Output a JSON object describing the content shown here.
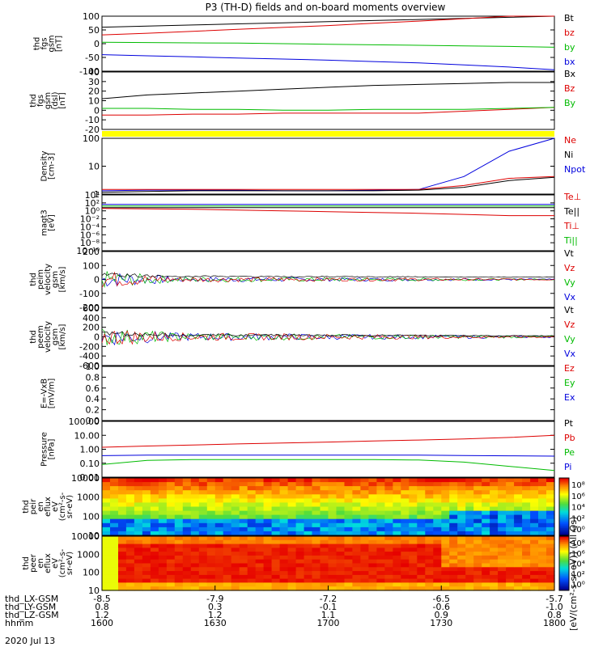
{
  "chart_data": {
    "type": "line",
    "title": "P3 (TH-D) fields and on-board moments overview",
    "date": "2020 Jul 13",
    "xaxis": {
      "hhmm_ticks": [
        "1600",
        "1630",
        "1700",
        "1730",
        "1800"
      ],
      "rows": [
        {
          "label": "thd_LX-GSM",
          "values": [
            "-8.5",
            "-7.9",
            "-7.2",
            "-6.5",
            "-5.7"
          ]
        },
        {
          "label": "thd_LY-GSM",
          "values": [
            "0.8",
            "0.3",
            "-0.1",
            "-0.6",
            "-1.0"
          ]
        },
        {
          "label": "thd_LZ-GSM",
          "values": [
            "1.2",
            "1.2",
            "1.1",
            "0.9",
            "0.8"
          ]
        },
        {
          "label": "hhmm",
          "values": [
            "1600",
            "1630",
            "1700",
            "1730",
            "1800"
          ]
        }
      ]
    },
    "panels": [
      {
        "ylabel": [
          "thd",
          "fgs",
          "gsm",
          "[nT]"
        ],
        "ticks": [
          "100",
          "50",
          "0",
          "-50",
          "-100"
        ],
        "legend": [
          {
            "t": "Bt",
            "c": "#000000"
          },
          {
            "t": "bz",
            "c": "#dd0000"
          },
          {
            "t": "by",
            "c": "#00bb00"
          },
          {
            "t": "bx",
            "c": "#0000dd"
          }
        ],
        "series": [
          {
            "name": "Bt",
            "color": "#000000",
            "values": [
              60,
              64,
              68,
              72,
              76,
              80,
              84,
              88,
              92,
              96,
              101
            ]
          },
          {
            "name": "bz",
            "color": "#dd0000",
            "values": [
              32,
              38,
              45,
              52,
              59,
              66,
              74,
              82,
              91,
              100,
              110
            ]
          },
          {
            "name": "by",
            "color": "#00bb00",
            "values": [
              5,
              4,
              3,
              2,
              0,
              -2,
              -4,
              -6,
              -8,
              -10,
              -13
            ]
          },
          {
            "name": "bx",
            "color": "#0000dd",
            "values": [
              -40,
              -44,
              -48,
              -52,
              -56,
              -60,
              -65,
              -70,
              -77,
              -85,
              -95
            ]
          }
        ]
      },
      {
        "ylabel": [
          "thd",
          "fgs",
          "gsm",
          "(dsl)",
          "[nT]"
        ],
        "ticks": [
          "40",
          "30",
          "20",
          "10",
          "0",
          "-10",
          "-20"
        ],
        "legend": [
          {
            "t": "Bx",
            "c": "#000000"
          },
          {
            "t": "Bz",
            "c": "#dd0000"
          },
          {
            "t": "By",
            "c": "#00bb00"
          }
        ],
        "series": [
          {
            "name": "Bx",
            "color": "#000000",
            "values": [
              12,
              16,
              18,
              20,
              22,
              24,
              26,
              27,
              28,
              29,
              29
            ]
          },
          {
            "name": "Bz",
            "color": "#dd0000",
            "values": [
              -5,
              -5,
              -4,
              -4,
              -3,
              -3,
              -3,
              -3,
              -1,
              1,
              3
            ]
          },
          {
            "name": "By",
            "color": "#00bb00",
            "values": [
              2,
              2,
              1,
              1,
              0,
              0,
              1,
              1,
              1,
              2,
              3
            ]
          }
        ]
      },
      {
        "ylabel": [
          "Density",
          "[cm-3]"
        ],
        "ticks": [
          "100",
          "10",
          "1"
        ],
        "legend": [
          {
            "t": "Ne",
            "c": "#dd0000"
          },
          {
            "t": "Ni",
            "c": "#000000"
          },
          {
            "t": "Npot",
            "c": "#0000dd"
          }
        ],
        "series": [
          {
            "name": "Npot",
            "color": "#0000dd",
            "values": [
              0.7,
              0.75,
              0.75,
              0.75,
              0.7,
              0.7,
              0.75,
              0.8,
              3,
              40,
              150
            ]
          },
          {
            "name": "Ne",
            "color": "#dd0000",
            "values": [
              0.8,
              0.8,
              0.8,
              0.8,
              0.8,
              0.8,
              0.8,
              0.8,
              1.2,
              2.5,
              3
            ]
          },
          {
            "name": "Ni",
            "color": "#000000",
            "values": [
              0.6,
              0.65,
              0.7,
              0.7,
              0.7,
              0.7,
              0.7,
              0.75,
              1,
              2,
              2.8
            ]
          }
        ]
      },
      {
        "ylabel": [
          "magt3",
          "[eV]"
        ],
        "ticks": [
          "10⁴",
          "10²",
          "10⁰",
          "10⁻²",
          "10⁻⁴",
          "10⁻⁶",
          "10⁻⁸",
          "10⁻¹⁰"
        ],
        "legend": [
          {
            "t": "Te⊥",
            "c": "#dd0000"
          },
          {
            "t": "Te||",
            "c": "#000000"
          },
          {
            "t": "Ti⊥",
            "c": "#dd0000"
          },
          {
            "t": "Ti||",
            "c": "#00bb00"
          }
        ],
        "series": []
      },
      {
        "ylabel": [
          "thd",
          "peim",
          "velocity",
          "gsm",
          "[km/s]"
        ],
        "ticks": [
          "200",
          "100",
          "0",
          "-100",
          "-200"
        ],
        "legend": [
          {
            "t": "Vt",
            "c": "#000000"
          },
          {
            "t": "Vz",
            "c": "#dd0000"
          },
          {
            "t": "Vy",
            "c": "#00bb00"
          },
          {
            "t": "Vx",
            "c": "#0000dd"
          }
        ],
        "series": []
      },
      {
        "ylabel": [
          "thd",
          "peem",
          "velocity",
          "gsm",
          "[km/s]"
        ],
        "ticks": [
          "600",
          "400",
          "200",
          "0",
          "-200",
          "-400",
          "-600"
        ],
        "legend": [
          {
            "t": "Vt",
            "c": "#000000"
          },
          {
            "t": "Vz",
            "c": "#dd0000"
          },
          {
            "t": "Vy",
            "c": "#00bb00"
          },
          {
            "t": "Vx",
            "c": "#0000dd"
          }
        ],
        "series": []
      },
      {
        "ylabel": [
          "E=-VxB",
          "[mV/m]"
        ],
        "ticks": [
          "1.0",
          "0.8",
          "0.6",
          "0.4",
          "0.2",
          "0.0"
        ],
        "legend": [
          {
            "t": "Ez",
            "c": "#dd0000"
          },
          {
            "t": "Ey",
            "c": "#00bb00"
          },
          {
            "t": "Ex",
            "c": "#0000dd"
          }
        ],
        "series": []
      },
      {
        "ylabel": [
          "Pressure",
          "[nPa]"
        ],
        "ticks": [
          "100.00",
          "10.00",
          "1.00",
          "0.10",
          "0.01"
        ],
        "legend": [
          {
            "t": "Pt",
            "c": "#000000"
          },
          {
            "t": "Pb",
            "c": "#dd0000"
          },
          {
            "t": "Pe",
            "c": "#00bb00"
          },
          {
            "t": "Pi",
            "c": "#0000dd"
          }
        ],
        "series": [
          {
            "name": "Pb",
            "color": "#dd0000",
            "values": [
              1.4,
              1.7,
              2,
              2.4,
              2.8,
              3.3,
              3.9,
              4.6,
              5.5,
              7,
              10
            ]
          },
          {
            "name": "Pi",
            "color": "#0000dd",
            "values": [
              0.35,
              0.38,
              0.38,
              0.38,
              0.38,
              0.38,
              0.38,
              0.38,
              0.36,
              0.34,
              0.32
            ]
          },
          {
            "name": "Pe",
            "color": "#00bb00",
            "values": [
              0.08,
              0.16,
              0.18,
              0.18,
              0.18,
              0.18,
              0.18,
              0.17,
              0.12,
              0.06,
              0.03
            ]
          }
        ]
      },
      {
        "ylabel": [
          "thd",
          "peir",
          "en",
          "eflux",
          "eV",
          "(cm²-s-",
          "sr-eV)"
        ],
        "ticks": [
          "10000",
          "1000",
          "100",
          "10"
        ],
        "legend": [],
        "series": []
      },
      {
        "ylabel": [
          "thd",
          "peer",
          "en",
          "eflux",
          "eV",
          "(cm²-s-",
          "sr-eV)"
        ],
        "ticks": [
          "10000",
          "1000",
          "100",
          "10"
        ],
        "legend": [],
        "series": []
      }
    ],
    "colorbar": {
      "ticks": [
        "10⁸",
        "10⁶",
        "10⁴",
        "10²",
        "10⁰"
      ],
      "label": "[eV/(cm²-s-sr-eV)] (All Qs)"
    }
  }
}
